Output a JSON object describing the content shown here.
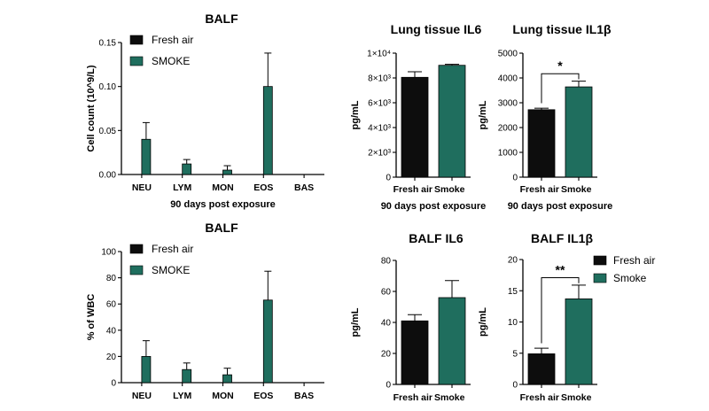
{
  "colors": {
    "fresh_air": "#0d0d0d",
    "smoke": "#1f6e5e"
  },
  "chart_data": [
    {
      "id": "balf-count",
      "type": "bar",
      "title": "BALF",
      "ylabel": "Cell count (10^9/L)",
      "xlabel": "90 days post exposure",
      "categories": [
        "NEU",
        "LYM",
        "MON",
        "EOS",
        "BAS"
      ],
      "ylim": [
        0,
        0.15
      ],
      "yticks": [
        "0.00",
        "0.05",
        "0.10",
        "0.15"
      ],
      "grid": false,
      "legend": "top-left",
      "series": [
        {
          "name": "Fresh air",
          "values": [
            0,
            0,
            0,
            0,
            0
          ],
          "errors": [
            0,
            0,
            0,
            0,
            0
          ]
        },
        {
          "name": "SMOKE",
          "values": [
            0.04,
            0.012,
            0.005,
            0.1,
            0
          ],
          "errors": [
            0.019,
            0.005,
            0.005,
            0.038,
            0
          ]
        }
      ]
    },
    {
      "id": "lung-il6",
      "type": "bar",
      "title": "Lung tissue IL6",
      "ylabel": "pg/mL",
      "xlabel": "90 days post exposure",
      "categories": [
        "Fresh air",
        "Smoke"
      ],
      "ylim": [
        0,
        10000
      ],
      "yticks": [
        "0",
        "2×10³",
        "4×10³",
        "6×10³",
        "8×10³",
        "1×10⁴"
      ],
      "grid": false,
      "values": [
        8050,
        9020
      ],
      "errors": [
        450,
        80
      ]
    },
    {
      "id": "lung-il1b",
      "type": "bar",
      "title": "Lung tissue IL1β",
      "ylabel": "pg/mL",
      "xlabel": "90 days post exposure",
      "categories": [
        "Fresh air",
        "Smoke"
      ],
      "ylim": [
        0,
        5000
      ],
      "yticks": [
        "0",
        "1000",
        "2000",
        "3000",
        "4000",
        "5000"
      ],
      "grid": false,
      "values": [
        2720,
        3640
      ],
      "errors": [
        60,
        230
      ],
      "significance": "*"
    },
    {
      "id": "balf-pct",
      "type": "bar",
      "title": "BALF",
      "ylabel": "% of WBC",
      "xlabel": "",
      "categories": [
        "NEU",
        "LYM",
        "MON",
        "EOS",
        "BAS"
      ],
      "ylim": [
        0,
        100
      ],
      "yticks": [
        "0",
        "20",
        "40",
        "60",
        "80",
        "100"
      ],
      "grid": false,
      "legend": "top-left",
      "series": [
        {
          "name": "Fresh air",
          "values": [
            0,
            0,
            0,
            0,
            0
          ],
          "errors": [
            0,
            0,
            0,
            0,
            0
          ]
        },
        {
          "name": "SMOKE",
          "values": [
            20,
            10,
            6,
            63,
            0
          ],
          "errors": [
            12,
            5,
            5,
            22,
            0
          ]
        }
      ]
    },
    {
      "id": "balf-il6",
      "type": "bar",
      "title": "BALF IL6",
      "ylabel": "pg/mL",
      "xlabel": "",
      "categories": [
        "Fresh air",
        "Smoke"
      ],
      "ylim": [
        0,
        80
      ],
      "yticks": [
        "0",
        "20",
        "40",
        "60",
        "80"
      ],
      "grid": false,
      "values": [
        41,
        56
      ],
      "errors": [
        4,
        11
      ]
    },
    {
      "id": "balf-il1b",
      "type": "bar",
      "title": "BALF IL1β",
      "ylabel": "pg/mL",
      "xlabel": "",
      "categories": [
        "Fresh air",
        "Smoke"
      ],
      "ylim": [
        0,
        20
      ],
      "yticks": [
        "0",
        "5",
        "10",
        "15",
        "20"
      ],
      "grid": false,
      "legend": "right",
      "legend_labels": [
        "Fresh air",
        "Smoke"
      ],
      "values": [
        4.9,
        13.7
      ],
      "errors": [
        0.9,
        2.2
      ],
      "significance": "**"
    }
  ]
}
